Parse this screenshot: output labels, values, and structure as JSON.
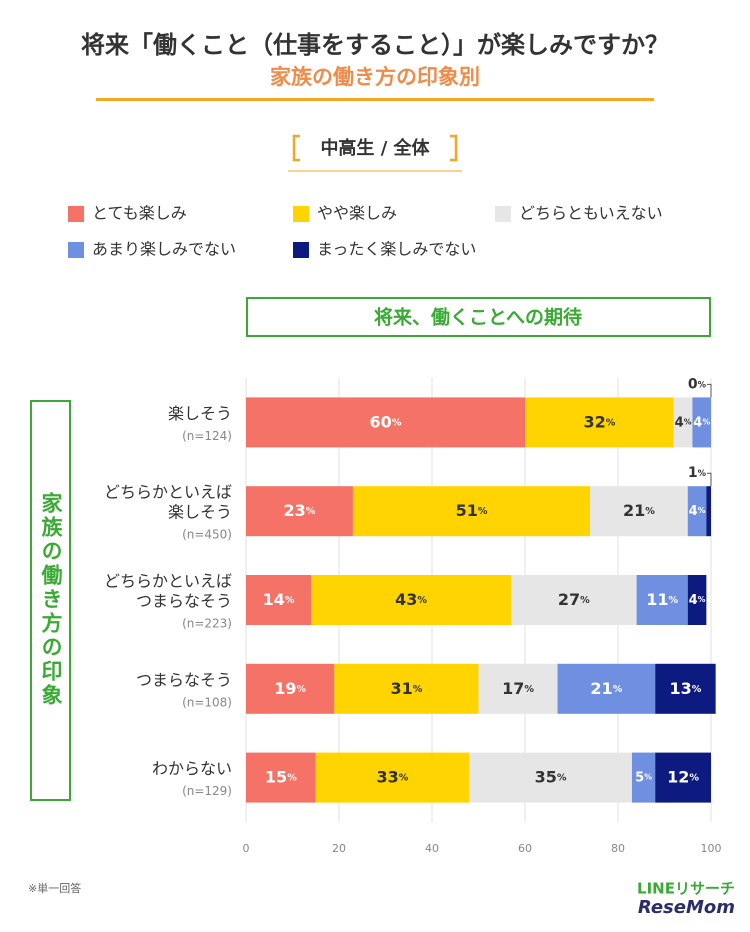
{
  "chart_data": {
    "type": "stacked-bar-horizontal",
    "title": "将来「働くこと（仕事をすること）」が楽しみですか？",
    "subtitle": "家族の働き方の印象別",
    "segment_label": "中高生 / 全体",
    "panel_title": "将来、働くことへの期待",
    "y_axis_title": "家族の働き方の印象",
    "categories": [
      [
        "楽しそう"
      ],
      [
        "どちらかといえば",
        "楽しそう"
      ],
      [
        "どちらかといえば",
        "つまらなそう"
      ],
      [
        "つまらなそう"
      ],
      [
        "わからない"
      ]
    ],
    "sample_sizes": [
      "(n=124)",
      "(n=450)",
      "(n=223)",
      "(n=108)",
      "(n=129)"
    ],
    "unit": "%",
    "series": [
      {
        "name": "とても楽しみ",
        "color": "#f47366",
        "values": [
          60,
          23,
          14,
          19,
          15
        ]
      },
      {
        "name": "やや楽しみ",
        "color": "#ffd400",
        "values": [
          32,
          51,
          43,
          31,
          33
        ]
      },
      {
        "name": "どちらともいえない",
        "color": "#e6e6e6",
        "values": [
          4,
          21,
          27,
          17,
          35
        ]
      },
      {
        "name": "あまり楽しみでない",
        "color": "#6f8fe0",
        "values": [
          4,
          4,
          11,
          21,
          5
        ]
      },
      {
        "name": "まったく楽しみでない",
        "color": "#0d1a80",
        "values": [
          0,
          1,
          4,
          13,
          12
        ]
      }
    ],
    "xlim": [
      0,
      100
    ],
    "xticks": [
      0,
      20,
      40,
      60,
      80,
      100
    ],
    "grid": true,
    "footnote": "※単一回答",
    "brand": "LINEリサーチ",
    "source": "ReseMom"
  }
}
